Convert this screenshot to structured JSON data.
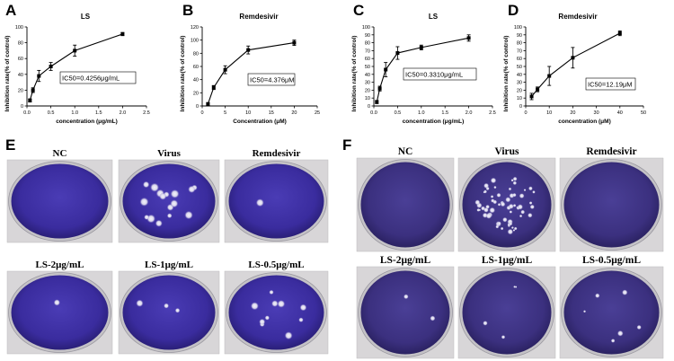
{
  "panels": {
    "A": "A",
    "B": "B",
    "C": "C",
    "D": "D",
    "E": "E",
    "F": "F"
  },
  "chart_data": [
    {
      "type": "line",
      "panel": "A",
      "title": "LS",
      "xlabel": "concentration (μg/mL)",
      "ylabel": "Inhibition rate(% of control)",
      "xlim": [
        0,
        2.5
      ],
      "ylim": [
        0,
        100
      ],
      "xticks": [
        "0.0",
        "0.5",
        "1.0",
        "1.5",
        "2.0",
        "2.5"
      ],
      "yticks": [
        "0",
        "20",
        "40",
        "60",
        "80",
        "100"
      ],
      "x": [
        0.0625,
        0.125,
        0.25,
        0.5,
        1.0,
        2.0
      ],
      "y": [
        7,
        20,
        38,
        50,
        70,
        91
      ],
      "err": [
        2,
        3,
        7,
        5,
        7,
        2
      ],
      "annotation": "IC50=0.4256μg/mL",
      "grid": false
    },
    {
      "type": "line",
      "panel": "B",
      "title": "Remdesivir",
      "xlabel": "Concentration (μM)",
      "ylabel": "Inhibition rate(% of control)",
      "xlim": [
        0,
        25
      ],
      "ylim": [
        0,
        120
      ],
      "xticks": [
        "0",
        "5",
        "10",
        "15",
        "20",
        "25"
      ],
      "yticks": [
        "0",
        "20",
        "40",
        "60",
        "80",
        "100",
        "120"
      ],
      "x": [
        1.25,
        2.5,
        5,
        10,
        20
      ],
      "y": [
        3,
        28,
        55,
        85,
        96
      ],
      "err": [
        2,
        3,
        6,
        6,
        4
      ],
      "annotation": "IC50=4.376μM",
      "grid": false
    },
    {
      "type": "line",
      "panel": "C",
      "title": "LS",
      "xlabel": "concentration (μg/mL)",
      "ylabel": "Inhibition rate(% of control)",
      "xlim": [
        0,
        2.5
      ],
      "ylim": [
        0,
        100
      ],
      "xticks": [
        "0.0",
        "0.5",
        "1.0",
        "1.5",
        "2.0",
        "2.5"
      ],
      "yticks": [
        "0",
        "10",
        "20",
        "30",
        "40",
        "50",
        "60",
        "70",
        "80",
        "90",
        "100"
      ],
      "x": [
        0.0625,
        0.125,
        0.25,
        0.5,
        1.0,
        2.0
      ],
      "y": [
        5,
        22,
        46,
        67,
        74,
        86
      ],
      "err": [
        2,
        3,
        9,
        8,
        3,
        4
      ],
      "annotation": "IC50=0.3310μg/mL",
      "grid": false
    },
    {
      "type": "line",
      "panel": "D",
      "title": "Remdesivir",
      "xlabel": "concentration (μM)",
      "ylabel": "Inhibition rate(% of control)",
      "xlim": [
        0,
        50
      ],
      "ylim": [
        0,
        100
      ],
      "xticks": [
        "0",
        "10",
        "20",
        "30",
        "40",
        "50"
      ],
      "yticks": [
        "0",
        "10",
        "20",
        "30",
        "40",
        "50",
        "60",
        "70",
        "80",
        "90",
        "100"
      ],
      "x": [
        2.5,
        5,
        10,
        20,
        40
      ],
      "y": [
        12,
        21,
        38,
        61,
        92
      ],
      "err": [
        4,
        3,
        12,
        13,
        3
      ],
      "annotation": "IC50=12.19μM",
      "grid": false
    }
  ],
  "wells_e": [
    {
      "label": "NC",
      "plaques": 0
    },
    {
      "label": "Virus",
      "plaques": 16
    },
    {
      "label": "Remdesivir",
      "plaques": 1
    },
    {
      "label": "LS-2μg/mL",
      "plaques": 1
    },
    {
      "label": "LS-1μg/mL",
      "plaques": 3
    },
    {
      "label": "LS-0.5μg/mL",
      "plaques": 10
    }
  ],
  "wells_f": [
    {
      "label": "NC",
      "plaques": 0
    },
    {
      "label": "Virus",
      "plaques": 60
    },
    {
      "label": "Remdesivir",
      "plaques": 0
    },
    {
      "label": "LS-2μg/mL",
      "plaques": 2
    },
    {
      "label": "LS-1μg/mL",
      "plaques": 4
    },
    {
      "label": "LS-0.5μg/mL",
      "plaques": 6
    }
  ],
  "colors": {
    "well_purple": "#3b2d9c",
    "well_purple_f": "#3a2f7e",
    "photo_bg": "#d8d6d8",
    "plaque": "#e6e4ef"
  }
}
